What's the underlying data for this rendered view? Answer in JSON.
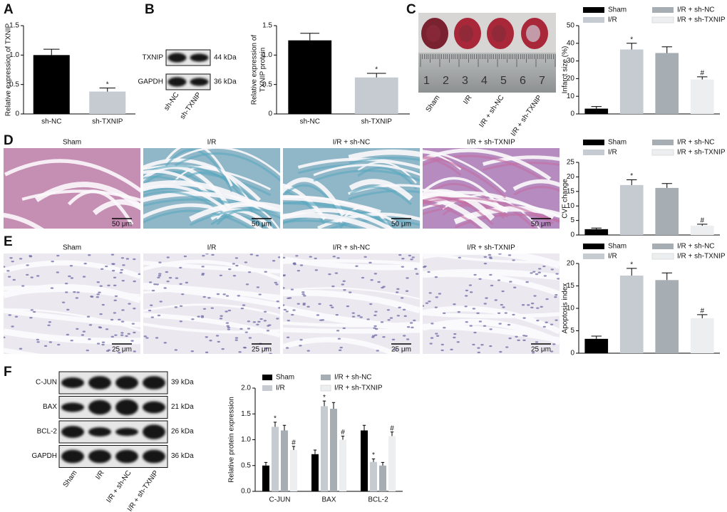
{
  "panel_letters": [
    "A",
    "B",
    "C",
    "D",
    "E",
    "F"
  ],
  "blot_B": {
    "lanes": [
      "sh-NC",
      "sh-TXNIP"
    ],
    "rows": [
      {
        "label": "TXNIP",
        "size": "44 kDa"
      },
      {
        "label": "GAPDH",
        "size": "36 kDa"
      }
    ]
  },
  "photo_C": {
    "labels": [
      "Sham",
      "I/R",
      "I/R + sh-NC",
      "I/R + sh-TXNIP"
    ],
    "ruler": [
      "1",
      "2",
      "3",
      "4",
      "5",
      "6",
      "7"
    ]
  },
  "micrographs_D": {
    "labels": [
      "Sham",
      "I/R",
      "I/R + sh-NC",
      "I/R + sh-TXNIP"
    ],
    "scale": "50 μm"
  },
  "micrographs_E": {
    "labels": [
      "Sham",
      "I/R",
      "I/R + sh-NC",
      "I/R + sh-TXNIP"
    ],
    "scale": "25 μm"
  },
  "blot_F": {
    "lanes": [
      "Sham",
      "I/R",
      "I/R + sh-NC",
      "I/R + sh-TXNIP"
    ],
    "rows": [
      {
        "label": "C-JUN",
        "size": "39 kDa"
      },
      {
        "label": "BAX",
        "size": "21 kDa"
      },
      {
        "label": "BCL-2",
        "size": "26 kDa"
      },
      {
        "label": "GAPDH",
        "size": "36 kDa"
      }
    ]
  },
  "chart_data": [
    {
      "type": "bar",
      "ylabel": "Relative expression of TXNIP",
      "categories": [
        "sh-NC",
        "sh-TXNIP"
      ],
      "values": [
        1.0,
        0.38
      ],
      "errors": [
        0.1,
        0.06
      ],
      "annotations": [
        null,
        "*"
      ],
      "colors": [
        "#000000",
        "#c5cbd0"
      ],
      "ylim": [
        0,
        1.5
      ],
      "yticks": [
        0,
        0.5,
        {
          "value": 1,
          "label": "1.0"
        },
        1.5
      ]
    },
    {
      "type": "bar",
      "ylabel": [
        "Relative expression of",
        "TXNIP protein"
      ],
      "categories": [
        "sh-NC",
        "sh-TXNIP"
      ],
      "values": [
        1.25,
        0.62
      ],
      "errors": [
        0.12,
        0.07
      ],
      "annotations": [
        null,
        "*"
      ],
      "colors": [
        "#000000",
        "#c5cbd0"
      ],
      "ylim": [
        0,
        1.5
      ],
      "yticks": [
        0,
        0.5,
        {
          "value": 1,
          "label": "1.0"
        },
        1.5
      ]
    },
    {
      "type": "bar",
      "ylabel": "Infarct size (%)",
      "ylim": [
        0,
        50
      ],
      "yticks": [
        0,
        10,
        20,
        30,
        40,
        50
      ],
      "series": [
        {
          "name": "Sham",
          "color": "#000000",
          "values": [
            3
          ],
          "errors": [
            1.2
          ],
          "annotations": [
            null
          ]
        },
        {
          "name": "I/R",
          "color": "#c5cbd0",
          "values": [
            36.5
          ],
          "errors": [
            3.5
          ],
          "annotations": [
            "*"
          ]
        },
        {
          "name": "I/R + sh-NC",
          "color": "#a6adb3",
          "values": [
            34.5
          ],
          "errors": [
            3.5
          ],
          "annotations": [
            null
          ]
        },
        {
          "name": "I/R + sh-TXNIP",
          "color": "#eceeef",
          "values": [
            19.5
          ],
          "errors": [
            1.5
          ],
          "annotations": [
            "#"
          ]
        }
      ]
    },
    {
      "type": "bar",
      "ylabel": "CVF change",
      "ylim": [
        0,
        25
      ],
      "yticks": [
        0,
        5,
        10,
        15,
        20,
        25
      ],
      "series": [
        {
          "name": "Sham",
          "color": "#000000",
          "values": [
            2
          ],
          "errors": [
            0.4
          ],
          "annotations": [
            null
          ]
        },
        {
          "name": "I/R",
          "color": "#c5cbd0",
          "values": [
            17.2
          ],
          "errors": [
            1.8
          ],
          "annotations": [
            "*"
          ]
        },
        {
          "name": "I/R + sh-NC",
          "color": "#a6adb3",
          "values": [
            16.2
          ],
          "errors": [
            1.5
          ],
          "annotations": [
            null
          ]
        },
        {
          "name": "I/R + sh-TXNIP",
          "color": "#eceeef",
          "values": [
            3.2
          ],
          "errors": [
            0.5
          ],
          "annotations": [
            "#"
          ]
        }
      ]
    },
    {
      "type": "bar",
      "ylabel": "Apoptosis index",
      "ylim": [
        0,
        20
      ],
      "yticks": [
        0,
        5,
        10,
        15,
        20
      ],
      "series": [
        {
          "name": "Sham",
          "color": "#000000",
          "values": [
            3.2
          ],
          "errors": [
            0.6
          ],
          "annotations": [
            null
          ]
        },
        {
          "name": "I/R",
          "color": "#c5cbd0",
          "values": [
            17.3
          ],
          "errors": [
            1.6
          ],
          "annotations": [
            "*"
          ]
        },
        {
          "name": "I/R + sh-NC",
          "color": "#a6adb3",
          "values": [
            16.3
          ],
          "errors": [
            1.6
          ],
          "annotations": [
            null
          ]
        },
        {
          "name": "I/R + sh-TXNIP",
          "color": "#eceeef",
          "values": [
            7.8
          ],
          "errors": [
            0.8
          ],
          "annotations": [
            "#"
          ]
        }
      ]
    },
    {
      "type": "bar",
      "ylabel": "Relative protein expression",
      "categories": [
        "C-JUN",
        "BAX",
        "BCL-2"
      ],
      "ylim": [
        0,
        2
      ],
      "yticks": [
        {
          "value": 0,
          "label": "0.0"
        },
        0.5,
        {
          "value": 1,
          "label": "1.0"
        },
        1.5,
        {
          "value": 2,
          "label": "2.0"
        }
      ],
      "series": [
        {
          "name": "Sham",
          "color": "#000000",
          "values": [
            0.5,
            0.72,
            1.18
          ],
          "errors": [
            0.06,
            0.08,
            0.1
          ],
          "annotations": [
            null,
            null,
            null
          ]
        },
        {
          "name": "I/R",
          "color": "#c5cbd0",
          "values": [
            1.25,
            1.65,
            0.57
          ],
          "errors": [
            0.09,
            0.1,
            0.06
          ],
          "annotations": [
            "*",
            "*",
            "*"
          ]
        },
        {
          "name": "I/R + sh-NC",
          "color": "#a6adb3",
          "values": [
            1.18,
            1.6,
            0.5
          ],
          "errors": [
            0.1,
            0.12,
            0.06
          ],
          "annotations": [
            null,
            null,
            null
          ]
        },
        {
          "name": "I/R + sh-TXNIP",
          "color": "#eceeef",
          "values": [
            0.8,
            1.0,
            1.07
          ],
          "errors": [
            0.07,
            0.07,
            0.08
          ],
          "annotations": [
            "#",
            "#",
            "#"
          ]
        }
      ]
    }
  ]
}
